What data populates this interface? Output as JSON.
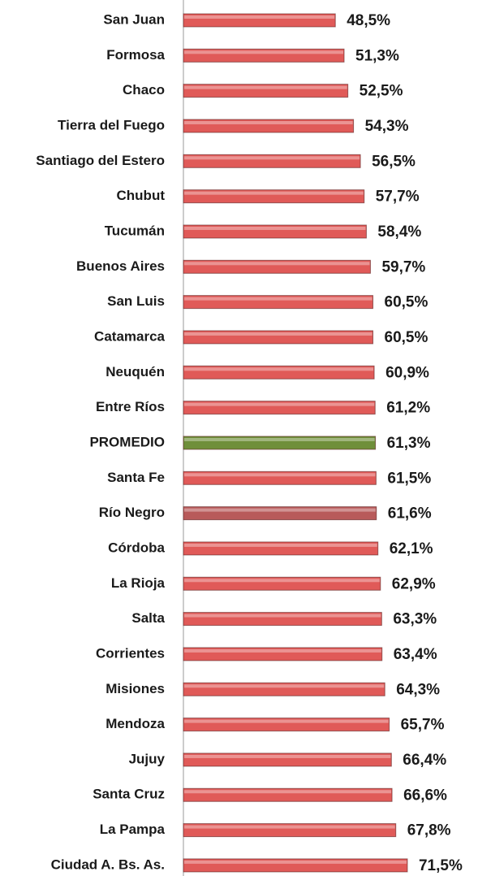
{
  "chart_data": {
    "type": "hbar",
    "categories": [
      "San Juan",
      "Formosa",
      "Chaco",
      "Tierra del Fuego",
      "Santiago del Estero",
      "Chubut",
      "Tucumán",
      "Buenos Aires",
      "San Luis",
      "Catamarca",
      "Neuquén",
      "Entre Ríos",
      "PROMEDIO",
      "Santa Fe",
      "Río Negro",
      "Córdoba",
      "La Rioja",
      "Salta",
      "Corrientes",
      "Misiones",
      "Mendoza",
      "Jujuy",
      "Santa Cruz",
      "La Pampa",
      "Ciudad A. Bs. As."
    ],
    "values": [
      48.5,
      51.3,
      52.5,
      54.3,
      56.5,
      57.7,
      58.4,
      59.7,
      60.5,
      60.5,
      60.9,
      61.2,
      61.3,
      61.5,
      61.6,
      62.1,
      62.9,
      63.3,
      63.4,
      64.3,
      65.7,
      66.4,
      66.6,
      67.8,
      71.5
    ],
    "value_labels": [
      "48,5%",
      "51,3%",
      "52,5%",
      "54,3%",
      "56,5%",
      "57,7%",
      "58,4%",
      "59,7%",
      "60,5%",
      "60,5%",
      "60,9%",
      "61,2%",
      "61,3%",
      "61,5%",
      "61,6%",
      "62,1%",
      "62,9%",
      "63,3%",
      "63,4%",
      "64,3%",
      "65,7%",
      "66,4%",
      "66,6%",
      "67,8%",
      "71,5%"
    ],
    "colors": [
      "#e05a58",
      "#e05a58",
      "#e05a58",
      "#e05a58",
      "#e05a58",
      "#e05a58",
      "#e05a58",
      "#e05a58",
      "#e05a58",
      "#e05a58",
      "#e05a58",
      "#e05a58",
      "#6f8f3a",
      "#e05a58",
      "#b85a5a",
      "#e05a58",
      "#e05a58",
      "#e05a58",
      "#e05a58",
      "#e05a58",
      "#e05a58",
      "#e05a58",
      "#e05a58",
      "#e05a58",
      "#e05a58"
    ]
  }
}
